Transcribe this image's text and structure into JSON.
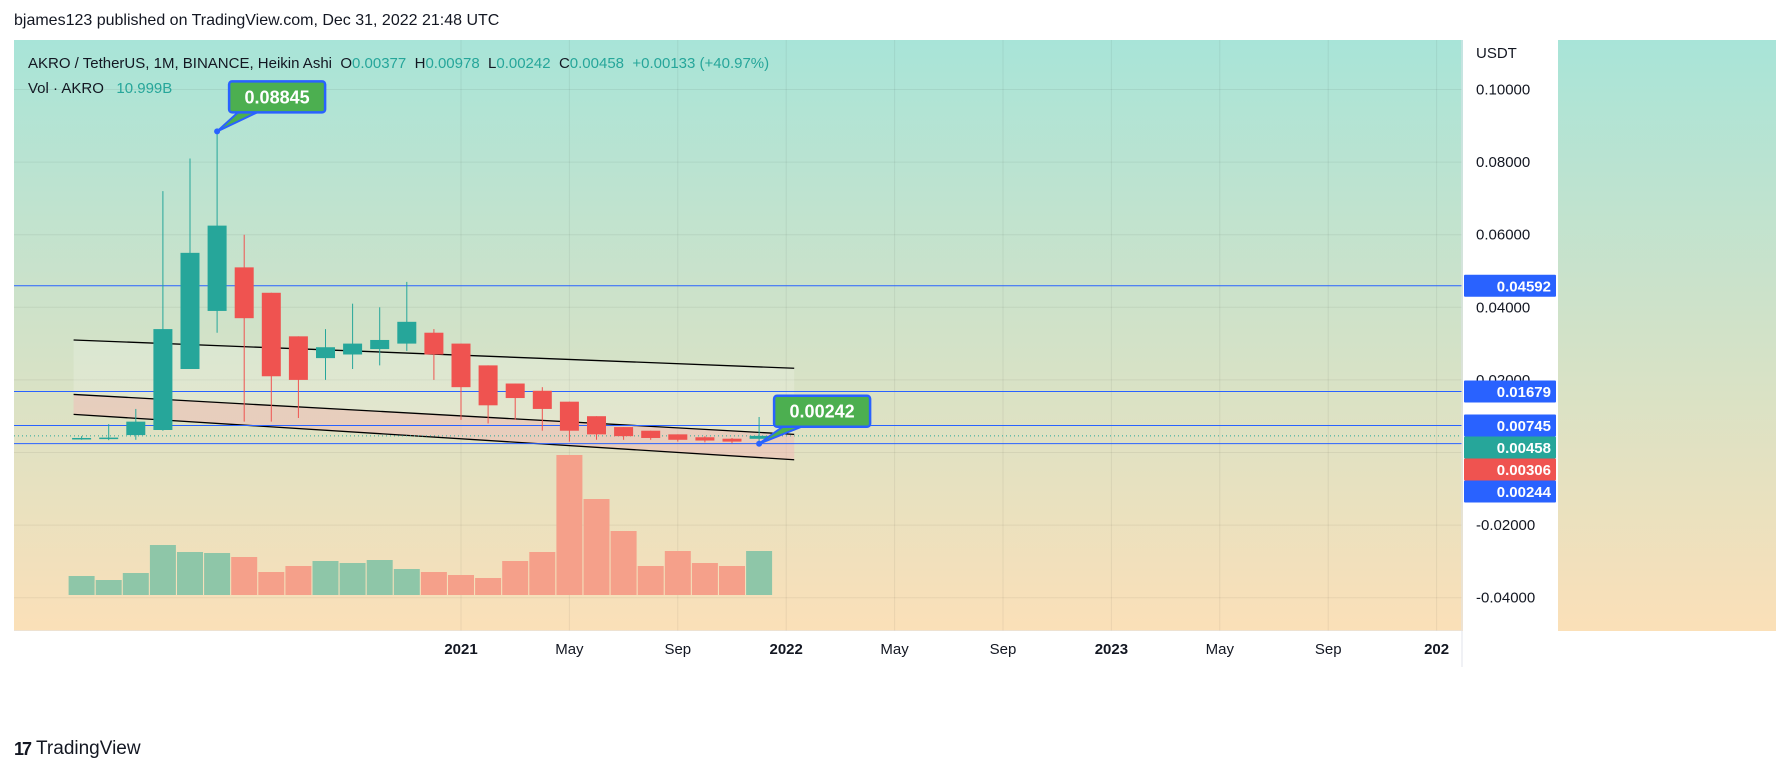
{
  "header": {
    "publisher_line": "bjames123 published on TradingView.com, Dec 31, 2022 21:48 UTC"
  },
  "legend": {
    "symbol": "AKRO / TetherUS, 1M, BINANCE, Heikin Ashi",
    "o_label": "O",
    "o_value": "0.00377",
    "h_label": "H",
    "h_value": "0.00978",
    "l_label": "L",
    "l_value": "0.00242",
    "c_label": "C",
    "c_value": "0.00458",
    "change": "+0.00133 (+40.97%)",
    "vol_label": "Vol · AKRO",
    "vol_value": "10.999B"
  },
  "footer": {
    "logo_mark": "17",
    "logo_text": "TradingView"
  },
  "colors": {
    "up": "#26a69a",
    "down": "#ef5350",
    "vol_up": "#8ec6a8",
    "vol_down": "#f5a08a",
    "hline": "#2962ff",
    "label_blue": "#2962ff",
    "label_green": "#4caf50",
    "label_red": "#ef5350",
    "bg_top": "#a8e4d8",
    "bg_bottom": "#fbe0b8"
  },
  "chart_data": {
    "type": "candlestick",
    "chart_style": "Heikin Ashi",
    "symbol": "AKRO / TetherUS",
    "interval": "1M",
    "exchange": "BINANCE",
    "y_axis_unit": "USDT",
    "ylim": [
      -0.046,
      0.106
    ],
    "y_ticks": [
      "0.10000",
      "0.08000",
      "0.06000",
      "0.04000",
      "0.02000",
      "-0.02000",
      "-0.04000"
    ],
    "y_tick_values": [
      0.1,
      0.08,
      0.06,
      0.04,
      0.02,
      -0.02,
      -0.04
    ],
    "x_ticks": [
      "2021",
      "May",
      "Sep",
      "2022",
      "May",
      "Sep",
      "2023",
      "May",
      "Sep",
      "202"
    ],
    "x_tick_months": [
      24,
      28,
      32,
      36,
      40,
      44,
      48,
      52,
      56,
      60
    ],
    "candles": [
      {
        "m": 10,
        "o": 0.0038,
        "h": 0.0045,
        "l": 0.0035,
        "c": 0.004
      },
      {
        "m": 11,
        "o": 0.0039,
        "h": 0.0078,
        "l": 0.0034,
        "c": 0.0041
      },
      {
        "m": 12,
        "o": 0.0048,
        "h": 0.012,
        "l": 0.0035,
        "c": 0.0085
      },
      {
        "m": 13,
        "o": 0.0062,
        "h": 0.072,
        "l": 0.006,
        "c": 0.034
      },
      {
        "m": 14,
        "o": 0.023,
        "h": 0.081,
        "l": 0.023,
        "c": 0.055
      },
      {
        "m": 15,
        "o": 0.039,
        "h": 0.08845,
        "l": 0.033,
        "c": 0.0625
      },
      {
        "m": 16,
        "o": 0.051,
        "h": 0.06,
        "l": 0.0085,
        "c": 0.037
      },
      {
        "m": 17,
        "o": 0.044,
        "h": 0.044,
        "l": 0.0085,
        "c": 0.021
      },
      {
        "m": 18,
        "o": 0.032,
        "h": 0.032,
        "l": 0.0095,
        "c": 0.02
      },
      {
        "m": 19,
        "o": 0.026,
        "h": 0.034,
        "l": 0.02,
        "c": 0.029
      },
      {
        "m": 20,
        "o": 0.027,
        "h": 0.041,
        "l": 0.023,
        "c": 0.03
      },
      {
        "m": 21,
        "o": 0.0285,
        "h": 0.04,
        "l": 0.024,
        "c": 0.031
      },
      {
        "m": 22,
        "o": 0.03,
        "h": 0.047,
        "l": 0.028,
        "c": 0.036
      },
      {
        "m": 23,
        "o": 0.033,
        "h": 0.034,
        "l": 0.02,
        "c": 0.027
      },
      {
        "m": 24,
        "o": 0.03,
        "h": 0.03,
        "l": 0.009,
        "c": 0.018
      },
      {
        "m": 25,
        "o": 0.024,
        "h": 0.024,
        "l": 0.008,
        "c": 0.013
      },
      {
        "m": 26,
        "o": 0.019,
        "h": 0.019,
        "l": 0.009,
        "c": 0.015
      },
      {
        "m": 27,
        "o": 0.017,
        "h": 0.018,
        "l": 0.006,
        "c": 0.012
      },
      {
        "m": 28,
        "o": 0.014,
        "h": 0.014,
        "l": 0.003,
        "c": 0.006
      },
      {
        "m": 29,
        "o": 0.01,
        "h": 0.01,
        "l": 0.0035,
        "c": 0.005
      },
      {
        "m": 30,
        "o": 0.007,
        "h": 0.007,
        "l": 0.0035,
        "c": 0.0045
      },
      {
        "m": 31,
        "o": 0.006,
        "h": 0.006,
        "l": 0.0035,
        "c": 0.004
      },
      {
        "m": 32,
        "o": 0.005,
        "h": 0.005,
        "l": 0.003,
        "c": 0.0035
      },
      {
        "m": 33,
        "o": 0.0042,
        "h": 0.0045,
        "l": 0.0028,
        "c": 0.0033
      },
      {
        "m": 34,
        "o": 0.0038,
        "h": 0.004,
        "l": 0.0025,
        "c": 0.003
      },
      {
        "m": 35,
        "o": 0.00377,
        "h": 0.00978,
        "l": 0.00242,
        "c": 0.00458
      }
    ],
    "volume_bars": [
      {
        "m": 10,
        "v": 0.19,
        "dir": "up"
      },
      {
        "m": 11,
        "v": 0.15,
        "dir": "up"
      },
      {
        "m": 12,
        "v": 0.22,
        "dir": "up"
      },
      {
        "m": 13,
        "v": 0.5,
        "dir": "up"
      },
      {
        "m": 14,
        "v": 0.43,
        "dir": "up"
      },
      {
        "m": 15,
        "v": 0.42,
        "dir": "up"
      },
      {
        "m": 16,
        "v": 0.38,
        "dir": "down"
      },
      {
        "m": 17,
        "v": 0.23,
        "dir": "down"
      },
      {
        "m": 18,
        "v": 0.29,
        "dir": "down"
      },
      {
        "m": 19,
        "v": 0.34,
        "dir": "up"
      },
      {
        "m": 20,
        "v": 0.32,
        "dir": "up"
      },
      {
        "m": 21,
        "v": 0.35,
        "dir": "up"
      },
      {
        "m": 22,
        "v": 0.26,
        "dir": "up"
      },
      {
        "m": 23,
        "v": 0.23,
        "dir": "down"
      },
      {
        "m": 24,
        "v": 0.2,
        "dir": "down"
      },
      {
        "m": 25,
        "v": 0.17,
        "dir": "down"
      },
      {
        "m": 26,
        "v": 0.34,
        "dir": "down"
      },
      {
        "m": 27,
        "v": 0.43,
        "dir": "down"
      },
      {
        "m": 28,
        "v": 1.4,
        "dir": "down"
      },
      {
        "m": 29,
        "v": 0.96,
        "dir": "down"
      },
      {
        "m": 30,
        "v": 0.64,
        "dir": "down"
      },
      {
        "m": 31,
        "v": 0.29,
        "dir": "down"
      },
      {
        "m": 32,
        "v": 0.44,
        "dir": "down"
      },
      {
        "m": 33,
        "v": 0.32,
        "dir": "down"
      },
      {
        "m": 34,
        "v": 0.29,
        "dir": "down"
      },
      {
        "m": 35,
        "v": 0.44,
        "dir": "up"
      }
    ],
    "horizontal_lines": [
      0.04592,
      0.01679,
      0.00745,
      0.00244
    ],
    "price_labels": [
      {
        "text": "0.04592",
        "value": 0.04592,
        "color": "#2962ff"
      },
      {
        "text": "0.01679",
        "value": 0.01679,
        "color": "#2962ff"
      },
      {
        "text": "0.00745",
        "value": 0.00745,
        "color": "#2962ff"
      },
      {
        "text": "0.00458",
        "value": 0.00458,
        "color": "#26a69a"
      },
      {
        "text": "0.00306",
        "value": 0.00306,
        "color": "#ef5350"
      },
      {
        "text": "0.00244",
        "value": 0.00244,
        "color": "#2962ff"
      }
    ],
    "callouts": [
      {
        "text": "0.08845",
        "m": 15,
        "value": 0.08845
      },
      {
        "text": "0.00242",
        "m": 35,
        "value": 0.00242
      }
    ],
    "channel": {
      "start_m": 10,
      "end_m": 36,
      "top_line": [
        0.031,
        0.0232
      ],
      "mid_line": [
        0.016,
        0.005
      ],
      "bottom_line": [
        0.0105,
        -0.002
      ]
    },
    "grid": true,
    "legend_placement": "top-left"
  }
}
